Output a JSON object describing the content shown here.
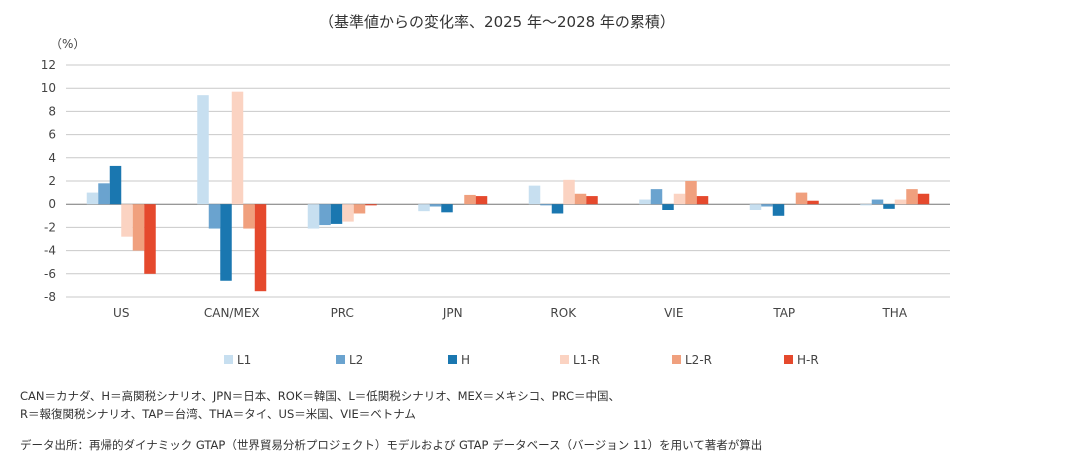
{
  "chart_data": {
    "type": "bar",
    "title": "（基準値からの変化率、2025 年～2028 年の累積）",
    "ylabel": "（%）",
    "xlabel": "",
    "ylim": [
      -8,
      12
    ],
    "yticks": [
      12,
      10,
      8,
      6,
      4,
      2,
      0,
      -2,
      -4,
      -6,
      -8
    ],
    "grid": true,
    "legend_position": "bottom",
    "categories": [
      "US",
      "CAN/MEX",
      "PRC",
      "JPN",
      "ROK",
      "VIE",
      "TAP",
      "THA"
    ],
    "series": [
      {
        "name": "L1",
        "color": "#c7dff0",
        "values": [
          1.0,
          9.4,
          -2.1,
          -0.6,
          1.6,
          0.4,
          -0.5,
          -0.1
        ]
      },
      {
        "name": "L2",
        "color": "#6aa3cf",
        "values": [
          1.8,
          -2.1,
          -1.8,
          -0.2,
          -0.1,
          1.3,
          -0.2,
          0.4
        ]
      },
      {
        "name": "H",
        "color": "#1a77b0",
        "values": [
          3.3,
          -6.6,
          -1.7,
          -0.7,
          -0.8,
          -0.5,
          -1.0,
          -0.4
        ]
      },
      {
        "name": "L1-R",
        "color": "#fbd3c2",
        "values": [
          -2.8,
          9.7,
          -1.5,
          0.0,
          2.1,
          0.9,
          0.0,
          0.4
        ]
      },
      {
        "name": "L2-R",
        "color": "#f0a07e",
        "values": [
          -4.0,
          -2.1,
          -0.8,
          0.8,
          0.9,
          2.0,
          1.0,
          1.3
        ]
      },
      {
        "name": "H-R",
        "color": "#e5492d",
        "values": [
          -6.0,
          -7.5,
          -0.1,
          0.7,
          0.7,
          0.7,
          0.3,
          0.9
        ]
      }
    ]
  },
  "notes": {
    "line1": "CAN＝カナダ、H＝高関税シナリオ、JPN＝日本、ROK＝韓国、L＝低関税シナリオ、MEX＝メキシコ、PRC＝中国、",
    "line2": "R＝報復関税シナリオ、TAP＝台湾、THA＝タイ、US＝米国、VIE＝ベトナム",
    "source": "データ出所：再帰的ダイナミック GTAP（世界貿易分析プロジェクト）モデルおよび GTAP データベース（バージョン 11）を用いて著者が算出"
  }
}
